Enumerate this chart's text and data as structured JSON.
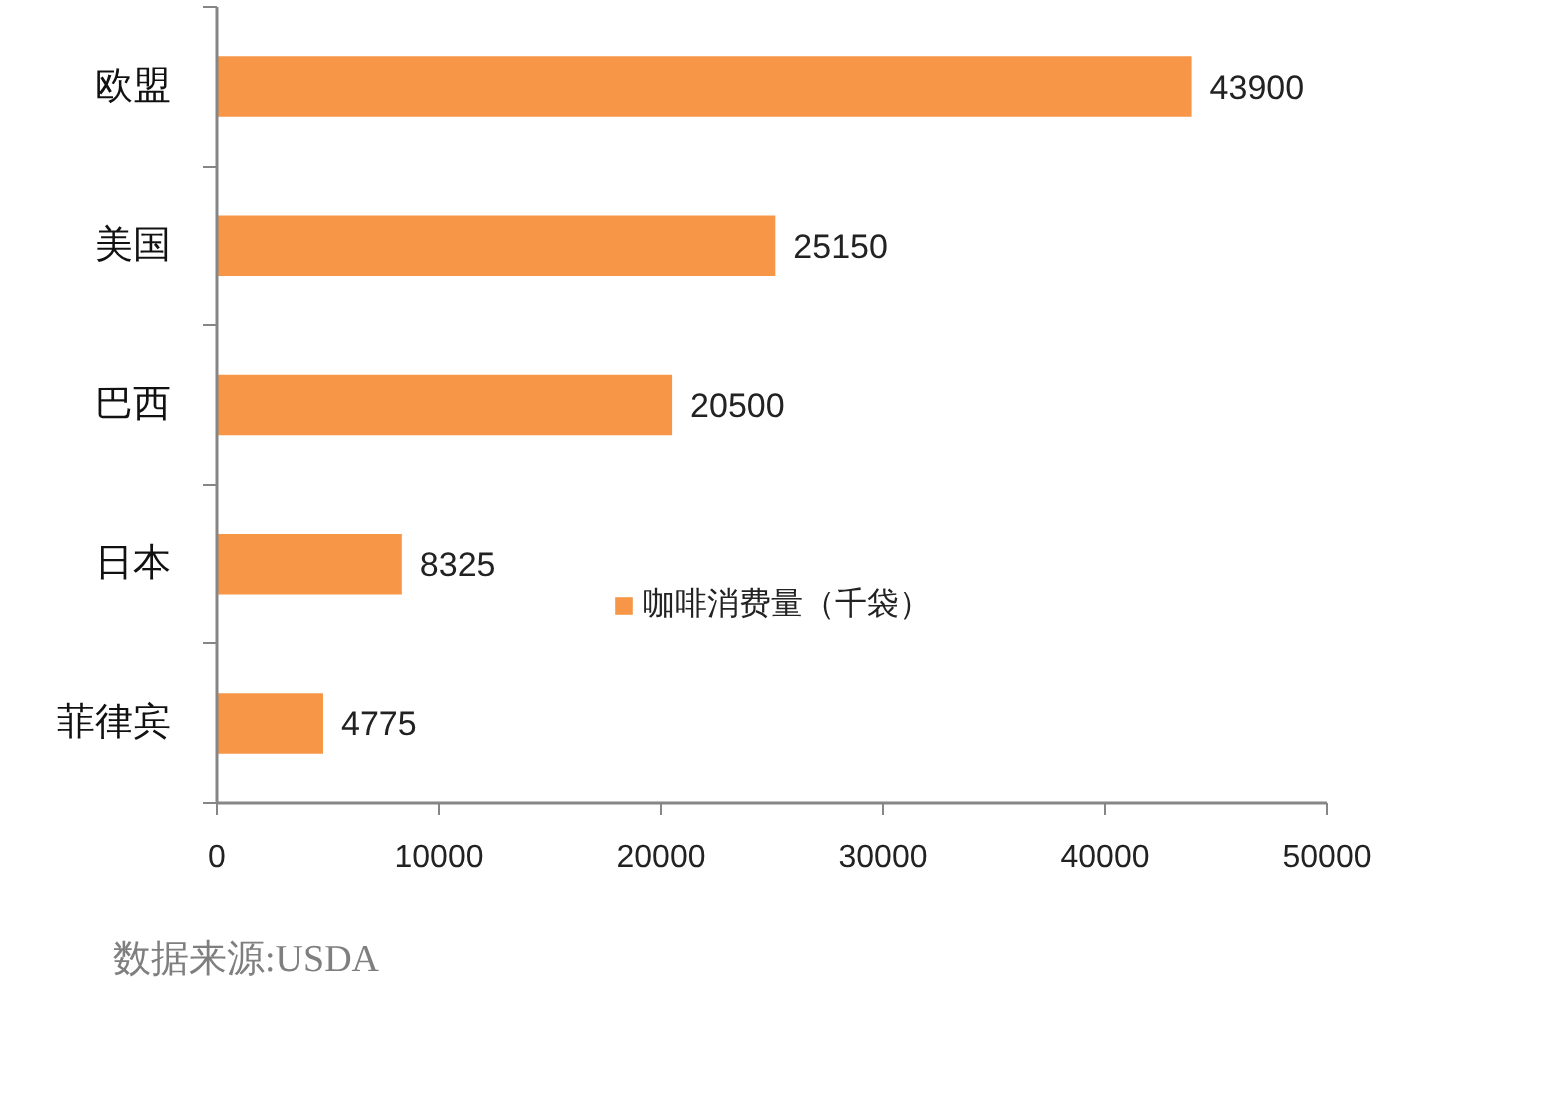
{
  "chart_data": {
    "type": "bar",
    "orientation": "horizontal",
    "categories": [
      "欧盟",
      "美国",
      "巴西",
      "日本",
      "菲律宾"
    ],
    "series": [
      {
        "name": "咖啡消费量（千袋）",
        "color": "#f79646",
        "values": [
          43900,
          25150,
          20500,
          8325,
          4775
        ]
      }
    ],
    "xlim": [
      0,
      50000
    ],
    "xticks": [
      0,
      10000,
      20000,
      30000,
      40000,
      50000
    ],
    "data_labels": true,
    "grid": false,
    "legend": "bottom",
    "annotations": [
      "数据来源:USDA"
    ]
  }
}
